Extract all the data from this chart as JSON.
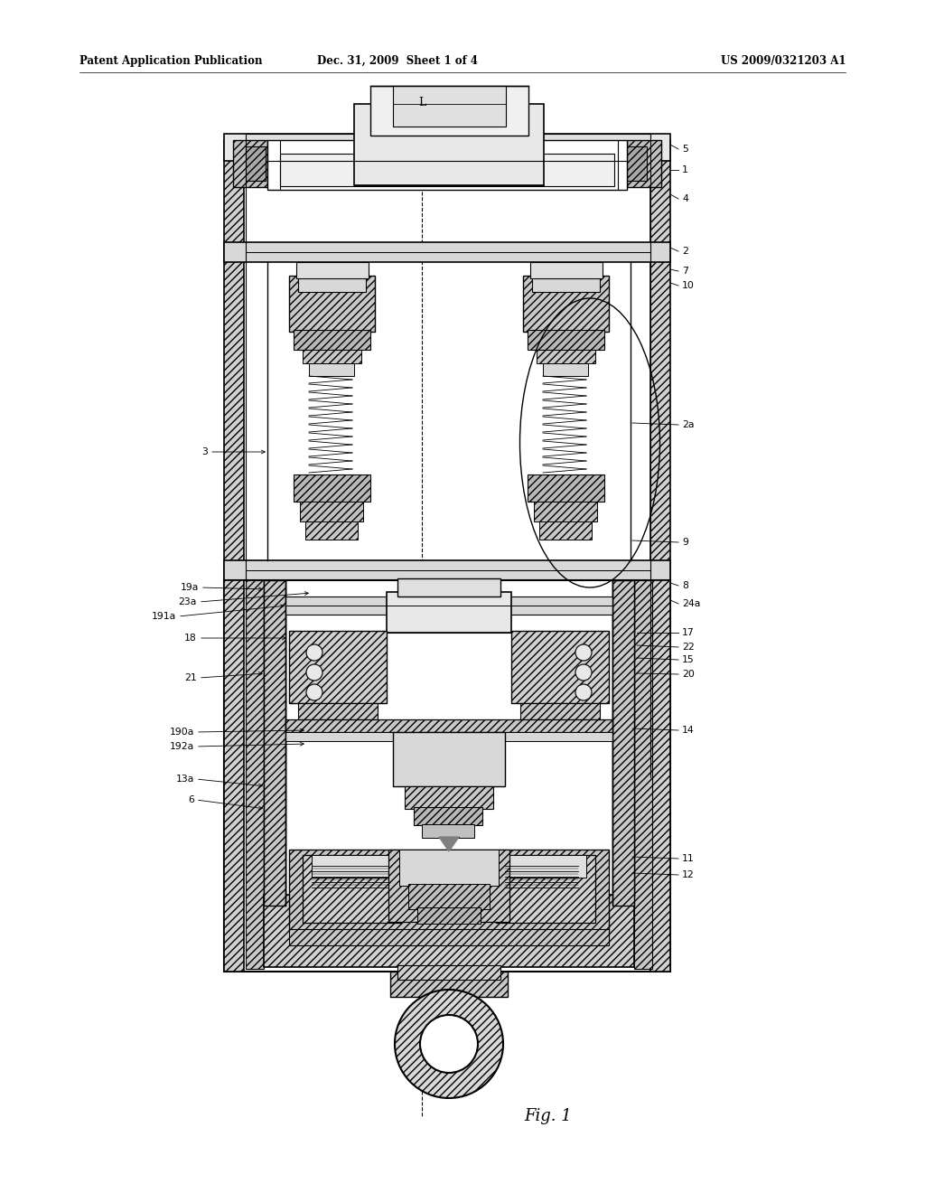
{
  "title_left": "Patent Application Publication",
  "title_mid": "Dec. 31, 2009  Sheet 1 of 4",
  "title_right": "US 2009/0321203 A1",
  "fig_label": "Fig. 1",
  "bg_color": "#ffffff"
}
